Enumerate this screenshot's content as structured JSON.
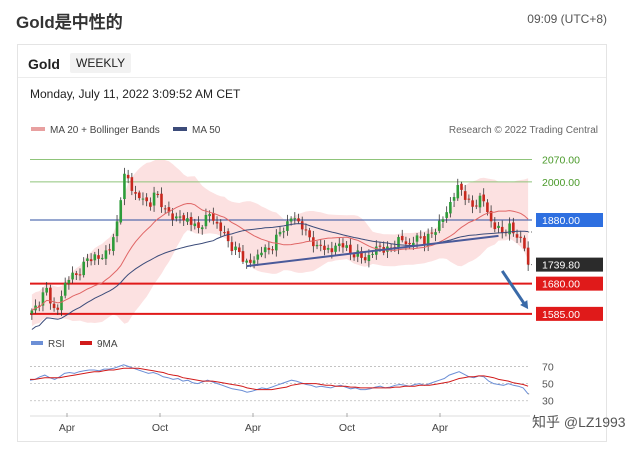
{
  "page": {
    "title": "Gold是中性的",
    "time": "09:09 (UTC+8)"
  },
  "card": {
    "title": "Gold",
    "tab": "WEEKLY",
    "timestamp": "Monday, July 11, 2022 3:09:52 AM CET"
  },
  "legend": {
    "ma20": "MA 20 + Bollinger Bands",
    "ma50": "MA 50",
    "credit": "Research © 2022 Trading Central",
    "rsi": "RSI",
    "nine_ma": "9MA"
  },
  "watermark": "知乎 @LZ1993",
  "colors": {
    "up": "#2e9c3a",
    "down": "#c8281e",
    "ma20": "#e06666",
    "band": "#fbd4d4",
    "ma50": "#3c4c7a",
    "green_line": "#8fc47a",
    "resistance_blue": "#2e4fa0",
    "support_red": "#d11a1a",
    "trend": "#4a5a9a",
    "arrow": "#3a6aa8"
  },
  "chart_data": [
    {
      "type": "candlestick",
      "y_unit": "USD",
      "ylim": [
        1550,
        2100
      ],
      "x_ticks": [
        "Apr",
        "Oct",
        "Apr",
        "Oct",
        "Apr"
      ],
      "x_tick_dates": [
        "2020-04",
        "2020-10",
        "2021-04",
        "2021-10",
        "2022-04"
      ],
      "closes": [
        1590,
        1610,
        1640,
        1660,
        1620,
        1580,
        1640,
        1690,
        1710,
        1700,
        1730,
        1750,
        1760,
        1770,
        1750,
        1780,
        1800,
        1830,
        1950,
        2030,
        1990,
        1960,
        1950,
        1940,
        1930,
        1960,
        1950,
        1910,
        1900,
        1880,
        1900,
        1870,
        1890,
        1860,
        1850,
        1880,
        1900,
        1880,
        1860,
        1840,
        1810,
        1790,
        1780,
        1760,
        1740,
        1750,
        1770,
        1790,
        1780,
        1800,
        1830,
        1850,
        1870,
        1890,
        1880,
        1860,
        1830,
        1820,
        1790,
        1800,
        1790,
        1780,
        1800,
        1810,
        1790,
        1770,
        1780,
        1760,
        1760,
        1770,
        1790,
        1800,
        1780,
        1790,
        1810,
        1820,
        1810,
        1800,
        1820,
        1830,
        1810,
        1830,
        1850,
        1870,
        1890,
        1930,
        1960,
        1990,
        1960,
        1930,
        1920,
        1950,
        1940,
        1890,
        1860,
        1850,
        1840,
        1860,
        1840,
        1830,
        1810,
        1740
      ],
      "levels": [
        {
          "label": "2070.00",
          "value": 2070,
          "color": "#8fc47a",
          "tag": "text"
        },
        {
          "label": "2000.00",
          "value": 2000,
          "color": "#8fc47a",
          "tag": "text"
        },
        {
          "label": "1880.00",
          "value": 1880,
          "color": "#2e6fe0",
          "tag": "box"
        },
        {
          "label": "1739.80",
          "value": 1739.8,
          "color": "#2b2b2b",
          "tag": "box"
        },
        {
          "label": "1680.00",
          "value": 1680,
          "color": "#e01a1a",
          "tag": "box"
        },
        {
          "label": "1585.00",
          "value": 1585,
          "color": "#e01a1a",
          "tag": "box"
        }
      ],
      "trendline": {
        "from": {
          "i": 58,
          "v": 1735
        },
        "to": {
          "i": 126,
          "v": 1830
        }
      },
      "forecast_arrow": {
        "from": {
          "i": 127,
          "v": 1720
        },
        "to": {
          "i": 134,
          "v": 1600
        }
      }
    },
    {
      "type": "line",
      "name": "RSI",
      "ylim": [
        25,
        80
      ],
      "y_ticks": [
        70,
        50,
        30
      ],
      "values": [
        54,
        55,
        58,
        60,
        57,
        55,
        58,
        62,
        63,
        62,
        64,
        65,
        66,
        66,
        65,
        67,
        67,
        68,
        70,
        72,
        70,
        68,
        66,
        64,
        62,
        63,
        61,
        58,
        57,
        55,
        56,
        53,
        54,
        51,
        50,
        52,
        54,
        52,
        50,
        48,
        46,
        44,
        43,
        42,
        40,
        41,
        43,
        45,
        44,
        46,
        48,
        50,
        52,
        54,
        53,
        51,
        49,
        48,
        46,
        47,
        46,
        45,
        47,
        48,
        46,
        44,
        45,
        43,
        43,
        44,
        46,
        47,
        45,
        46,
        48,
        49,
        48,
        47,
        49,
        50,
        48,
        50,
        52,
        54,
        56,
        60,
        62,
        64,
        61,
        58,
        57,
        59,
        58,
        53,
        50,
        49,
        48,
        50,
        48,
        47,
        45,
        38
      ],
      "ma9": [
        55,
        55,
        56,
        57,
        57,
        57,
        57,
        58,
        59,
        60,
        61,
        62,
        63,
        64,
        64,
        65,
        66,
        66,
        67,
        68,
        68,
        68,
        68,
        67,
        66,
        65,
        64,
        63,
        61,
        60,
        59,
        57,
        56,
        55,
        54,
        53,
        53,
        53,
        52,
        51,
        50,
        49,
        48,
        47,
        45,
        44,
        43,
        43,
        43,
        43,
        44,
        45,
        46,
        48,
        49,
        50,
        50,
        50,
        50,
        49,
        48,
        48,
        47,
        47,
        47,
        46,
        46,
        45,
        45,
        45,
        45,
        45,
        45,
        45,
        46,
        46,
        47,
        47,
        47,
        48,
        48,
        48,
        49,
        50,
        51,
        52,
        54,
        56,
        57,
        58,
        58,
        59,
        59,
        58,
        57,
        55,
        54,
        53,
        51,
        50,
        49,
        47
      ]
    }
  ]
}
